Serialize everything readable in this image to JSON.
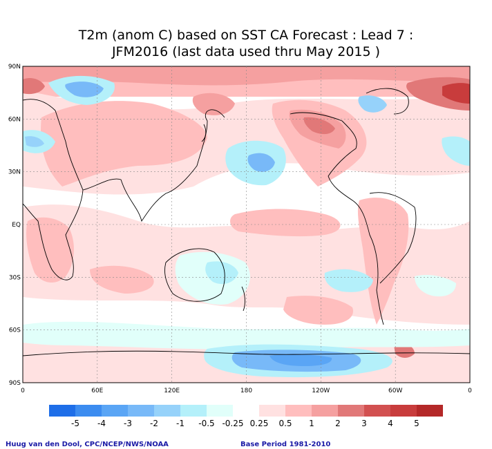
{
  "title": {
    "line1": "T2m (anom C) based on SST CA Forecast : Lead 7 :",
    "line2": "JFM2016 (last data used thru May 2015 )"
  },
  "lat_labels": [
    "90N",
    "60N",
    "30N",
    "EQ",
    "30S",
    "60S",
    "90S"
  ],
  "lon_labels": [
    "0",
    "60E",
    "120E",
    "180",
    "120W",
    "60W",
    "0"
  ],
  "legend": {
    "labels": [
      "-5",
      "-4",
      "-3",
      "-2",
      "-1",
      "-0.5",
      "-0.25",
      "0.25",
      "0.5",
      "1",
      "2",
      "3",
      "4",
      "5"
    ],
    "colors": [
      "#1e6ee8",
      "#3c8cf0",
      "#5aa5f5",
      "#78b9f8",
      "#96d2fa",
      "#b4f0fa",
      "#e1fffa",
      "#ffffff",
      "#ffe1e1",
      "#ffbebe",
      "#f5a0a0",
      "#e17878",
      "#d25050",
      "#c83c3c",
      "#b42828"
    ]
  },
  "credits": {
    "left": "Huug van den Dool, CPC/NCEP/NWS/NOAA",
    "right": "Base Period 1981-2010"
  }
}
